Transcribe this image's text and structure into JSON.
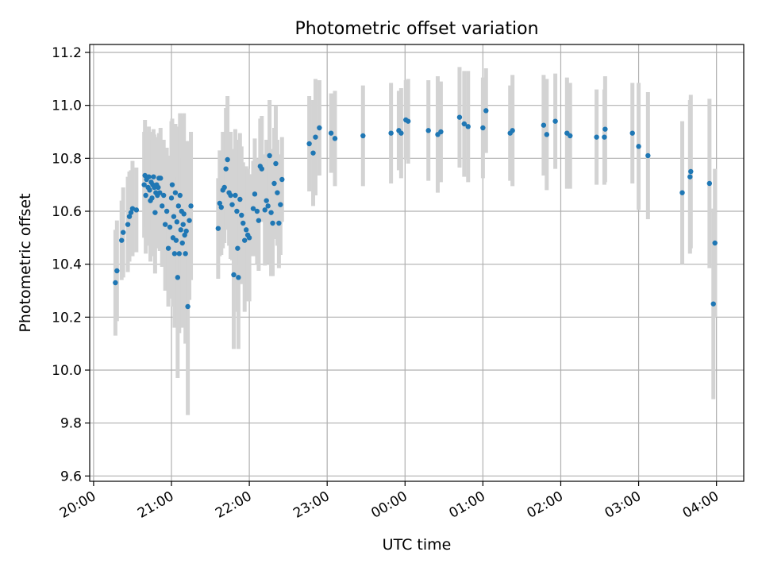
{
  "chart_data": {
    "type": "scatter",
    "title": "Photometric offset variation",
    "xlabel": "UTC time",
    "ylabel": "Photometric offset",
    "xlim": [
      -0.05,
      8.35
    ],
    "ylim": [
      9.58,
      11.23
    ],
    "grid": true,
    "x_unit": "hours after 20:00 UTC",
    "x_ticks": [
      0,
      1,
      2,
      3,
      4,
      5,
      6,
      7,
      8
    ],
    "x_tick_labels": [
      "20:00",
      "21:00",
      "22:00",
      "23:00",
      "00:00",
      "01:00",
      "02:00",
      "03:00",
      "04:00"
    ],
    "y_ticks": [
      9.6,
      9.8,
      10.0,
      10.2,
      10.4,
      10.6,
      10.8,
      11.0,
      11.2
    ],
    "y_tick_labels": [
      "9.6",
      "9.8",
      "10.0",
      "10.2",
      "10.4",
      "10.6",
      "10.8",
      "11.0",
      "11.2"
    ],
    "colors": {
      "points": "#1f77b4",
      "errorbars": "#d3d3d3",
      "grid": "#b0b0b0"
    },
    "points": [
      [
        0.28,
        10.33,
        0.2
      ],
      [
        0.3,
        10.375,
        0.19
      ],
      [
        0.36,
        10.49,
        0.15
      ],
      [
        0.38,
        10.52,
        0.17
      ],
      [
        0.44,
        10.55,
        0.18
      ],
      [
        0.46,
        10.58,
        0.17
      ],
      [
        0.48,
        10.595,
        0.16
      ],
      [
        0.5,
        10.61,
        0.18
      ],
      [
        0.55,
        10.605,
        0.16
      ],
      [
        0.65,
        10.7,
        0.2
      ],
      [
        0.66,
        10.735,
        0.21
      ],
      [
        0.67,
        10.66,
        0.22
      ],
      [
        0.68,
        10.72,
        0.18
      ],
      [
        0.7,
        10.69,
        0.2
      ],
      [
        0.71,
        10.73,
        0.19
      ],
      [
        0.72,
        10.68,
        0.21
      ],
      [
        0.73,
        10.64,
        0.23
      ],
      [
        0.74,
        10.71,
        0.19
      ],
      [
        0.75,
        10.65,
        0.22
      ],
      [
        0.76,
        10.7,
        0.17
      ],
      [
        0.77,
        10.73,
        0.18
      ],
      [
        0.78,
        10.69,
        0.2
      ],
      [
        0.79,
        10.595,
        0.23
      ],
      [
        0.8,
        10.67,
        0.21
      ],
      [
        0.81,
        10.7,
        0.18
      ],
      [
        0.82,
        10.66,
        0.2
      ],
      [
        0.83,
        10.69,
        0.19
      ],
      [
        0.84,
        10.725,
        0.17
      ],
      [
        0.85,
        10.67,
        0.22
      ],
      [
        0.86,
        10.725,
        0.19
      ],
      [
        0.88,
        10.62,
        0.23
      ],
      [
        0.9,
        10.66,
        0.21
      ],
      [
        0.92,
        10.55,
        0.25
      ],
      [
        0.94,
        10.6,
        0.24
      ],
      [
        0.96,
        10.46,
        0.22
      ],
      [
        0.98,
        10.54,
        0.27
      ],
      [
        1.0,
        10.65,
        0.29
      ],
      [
        1.01,
        10.7,
        0.25
      ],
      [
        1.02,
        10.5,
        0.26
      ],
      [
        1.03,
        10.58,
        0.3
      ],
      [
        1.04,
        10.44,
        0.28
      ],
      [
        1.05,
        10.67,
        0.26
      ],
      [
        1.06,
        10.49,
        0.3
      ],
      [
        1.07,
        10.56,
        0.32
      ],
      [
        1.08,
        10.35,
        0.38
      ],
      [
        1.09,
        10.62,
        0.3
      ],
      [
        1.1,
        10.44,
        0.3
      ],
      [
        1.11,
        10.66,
        0.31
      ],
      [
        1.12,
        10.53,
        0.33
      ],
      [
        1.13,
        10.6,
        0.36
      ],
      [
        1.14,
        10.48,
        0.32
      ],
      [
        1.15,
        10.55,
        0.36
      ],
      [
        1.16,
        10.59,
        0.38
      ],
      [
        1.17,
        10.51,
        0.32
      ],
      [
        1.18,
        10.44,
        0.34
      ],
      [
        1.19,
        10.525,
        0.34
      ],
      [
        1.21,
        10.24,
        0.41
      ],
      [
        1.23,
        10.565,
        0.3
      ],
      [
        1.25,
        10.62,
        0.28
      ],
      [
        1.6,
        10.535,
        0.19
      ],
      [
        1.62,
        10.63,
        0.2
      ],
      [
        1.64,
        10.615,
        0.18
      ],
      [
        1.66,
        10.68,
        0.22
      ],
      [
        1.68,
        10.69,
        0.21
      ],
      [
        1.7,
        10.76,
        0.23
      ],
      [
        1.72,
        10.795,
        0.24
      ],
      [
        1.74,
        10.67,
        0.2
      ],
      [
        1.76,
        10.66,
        0.24
      ],
      [
        1.78,
        10.625,
        0.21
      ],
      [
        1.8,
        10.36,
        0.28
      ],
      [
        1.82,
        10.66,
        0.25
      ],
      [
        1.84,
        10.6,
        0.27
      ],
      [
        1.85,
        10.46,
        0.24
      ],
      [
        1.86,
        10.35,
        0.27
      ],
      [
        1.88,
        10.645,
        0.25
      ],
      [
        1.9,
        10.585,
        0.26
      ],
      [
        1.92,
        10.555,
        0.23
      ],
      [
        1.94,
        10.49,
        0.27
      ],
      [
        1.96,
        10.53,
        0.24
      ],
      [
        1.98,
        10.51,
        0.25
      ],
      [
        2.0,
        10.5,
        0.24
      ],
      [
        2.05,
        10.61,
        0.18
      ],
      [
        2.07,
        10.665,
        0.21
      ],
      [
        2.1,
        10.6,
        0.2
      ],
      [
        2.12,
        10.565,
        0.19
      ],
      [
        2.14,
        10.77,
        0.18
      ],
      [
        2.16,
        10.76,
        0.2
      ],
      [
        2.2,
        10.605,
        0.21
      ],
      [
        2.22,
        10.64,
        0.23
      ],
      [
        2.24,
        10.62,
        0.22
      ],
      [
        2.26,
        10.81,
        0.21
      ],
      [
        2.28,
        10.595,
        0.24
      ],
      [
        2.3,
        10.555,
        0.2
      ],
      [
        2.32,
        10.705,
        0.21
      ],
      [
        2.34,
        10.78,
        0.22
      ],
      [
        2.36,
        10.67,
        0.2
      ],
      [
        2.38,
        10.555,
        0.17
      ],
      [
        2.4,
        10.625,
        0.19
      ],
      [
        2.42,
        10.72,
        0.16
      ],
      [
        2.77,
        10.855,
        0.18
      ],
      [
        2.82,
        10.82,
        0.2
      ],
      [
        2.85,
        10.88,
        0.22
      ],
      [
        2.9,
        10.915,
        0.18
      ],
      [
        3.05,
        10.895,
        0.15
      ],
      [
        3.1,
        10.875,
        0.18
      ],
      [
        3.46,
        10.885,
        0.19
      ],
      [
        3.82,
        10.895,
        0.19
      ],
      [
        3.92,
        10.905,
        0.15
      ],
      [
        3.95,
        10.895,
        0.17
      ],
      [
        4.01,
        10.945,
        0.15
      ],
      [
        4.04,
        10.94,
        0.16
      ],
      [
        4.3,
        10.905,
        0.19
      ],
      [
        4.42,
        10.89,
        0.22
      ],
      [
        4.46,
        10.9,
        0.19
      ],
      [
        4.7,
        10.955,
        0.19
      ],
      [
        4.76,
        10.93,
        0.2
      ],
      [
        4.81,
        10.92,
        0.21
      ],
      [
        5.0,
        10.915,
        0.19
      ],
      [
        5.04,
        10.98,
        0.16
      ],
      [
        5.35,
        10.895,
        0.18
      ],
      [
        5.38,
        10.905,
        0.21
      ],
      [
        5.78,
        10.925,
        0.19
      ],
      [
        5.82,
        10.89,
        0.21
      ],
      [
        5.93,
        10.94,
        0.18
      ],
      [
        6.08,
        10.895,
        0.21
      ],
      [
        6.12,
        10.885,
        0.2
      ],
      [
        6.46,
        10.88,
        0.18
      ],
      [
        6.56,
        10.88,
        0.18
      ],
      [
        6.57,
        10.91,
        0.2
      ],
      [
        6.92,
        10.895,
        0.19
      ],
      [
        7.0,
        10.845,
        0.24
      ],
      [
        7.12,
        10.81,
        0.24
      ],
      [
        7.56,
        10.67,
        0.27
      ],
      [
        7.66,
        10.73,
        0.29
      ],
      [
        7.67,
        10.75,
        0.29
      ],
      [
        7.91,
        10.705,
        0.32
      ],
      [
        7.96,
        10.25,
        0.36
      ],
      [
        7.98,
        10.48,
        0.28
      ]
    ]
  }
}
